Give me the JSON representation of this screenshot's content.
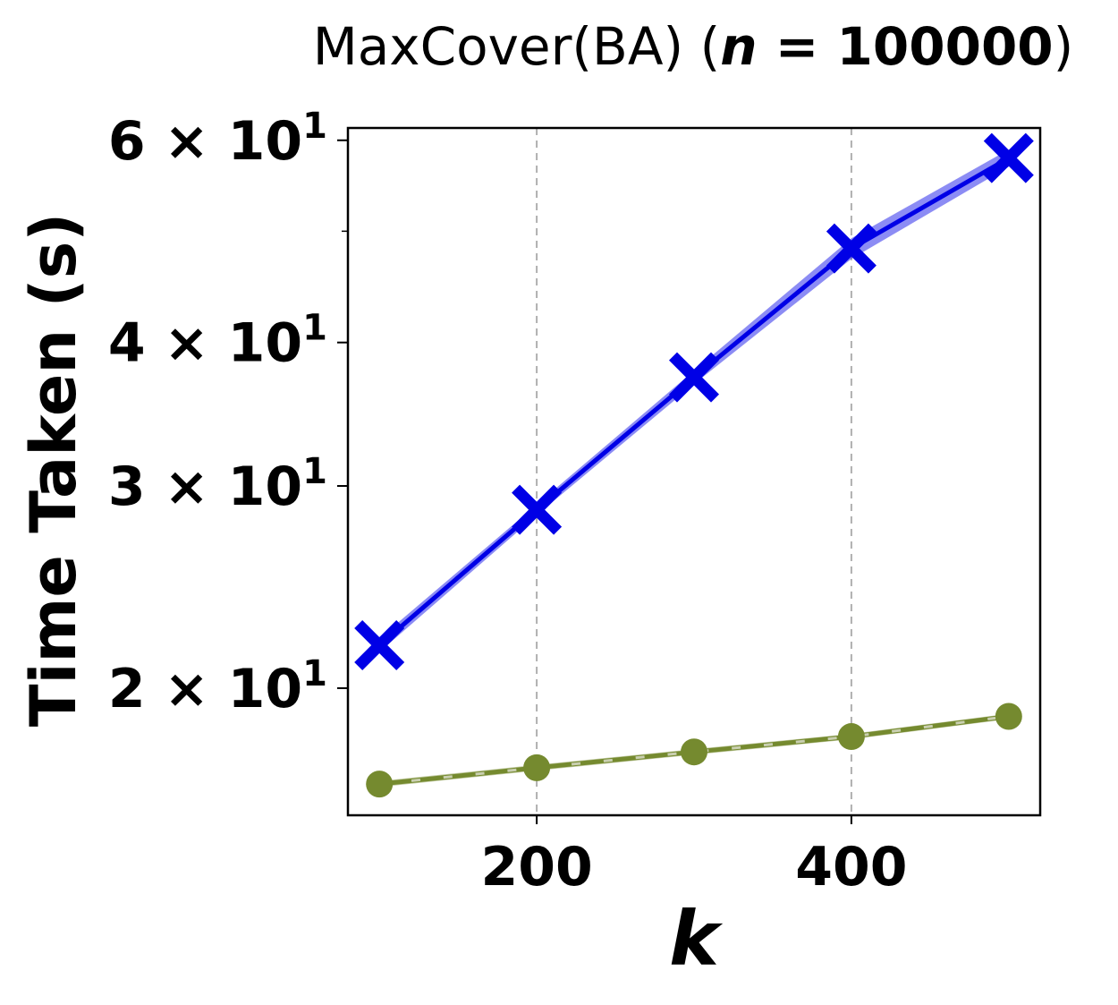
{
  "chart_data": {
    "type": "line",
    "title_prefix": "MaxCover(BA) (",
    "title_var": "n",
    "title_eq": " = 100000",
    "title_suffix": ")",
    "xlabel": "k",
    "ylabel": "Time Taken (s)",
    "yscale": "log",
    "xlim": [
      80,
      520
    ],
    "ylim": [
      15.5,
      61.5
    ],
    "grid": "vertical dashed at x ticks",
    "x": [
      100,
      200,
      300,
      400,
      500
    ],
    "xticks": [
      {
        "value": 200,
        "label": "200"
      },
      {
        "value": 400,
        "label": "400"
      }
    ],
    "yticks": [
      {
        "value": 20,
        "mant": "2",
        "times": "×",
        "base": "10",
        "exp": "1"
      },
      {
        "value": 30,
        "mant": "3",
        "times": "×",
        "base": "10",
        "exp": "1"
      },
      {
        "value": 40,
        "mant": "4",
        "times": "×",
        "base": "10",
        "exp": "1"
      },
      {
        "value": 60,
        "mant": "6",
        "times": "×",
        "base": "10",
        "exp": "1"
      }
    ],
    "yminor": [
      50
    ],
    "series": [
      {
        "marker": "X",
        "color": "#0000e6",
        "values": [
          21.8,
          28.6,
          37.3,
          48.3,
          57.9
        ],
        "band_low": [
          21.5,
          28.3,
          36.8,
          47.3,
          56.9
        ],
        "band_high": [
          22.1,
          28.9,
          37.8,
          49.3,
          58.9
        ]
      },
      {
        "marker": "circle",
        "color": "#758a2f",
        "values": [
          16.5,
          17.05,
          17.6,
          18.15,
          18.9
        ],
        "band_low": [
          16.4,
          16.95,
          17.5,
          18.05,
          18.8
        ],
        "band_high": [
          16.6,
          17.15,
          17.7,
          18.25,
          19.0
        ]
      }
    ]
  }
}
